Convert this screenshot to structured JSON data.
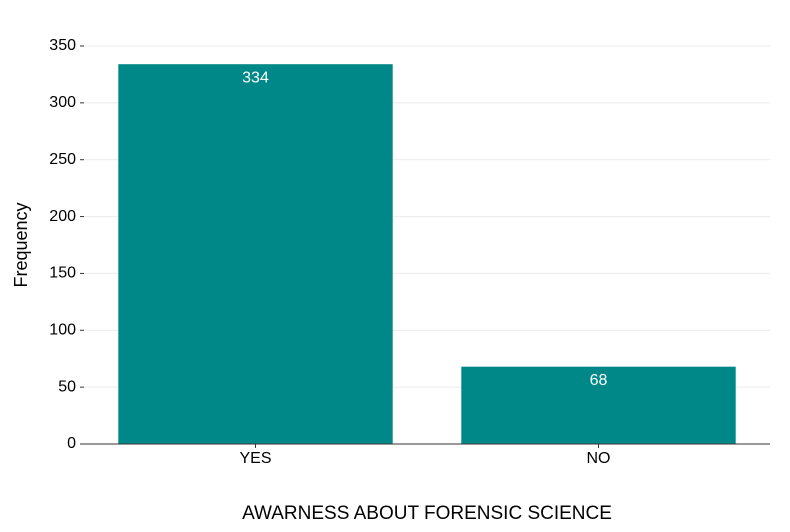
{
  "chart_data": {
    "type": "bar",
    "categories": [
      "YES",
      "NO"
    ],
    "values": [
      334,
      68
    ],
    "color": "#008888",
    "xlabel": "AWARNESS ABOUT FORENSIC SCIENCE",
    "ylabel": "Frequency",
    "ylim": [
      0,
      350
    ],
    "yticks": [
      0,
      50,
      100,
      150,
      200,
      250,
      300,
      350
    ],
    "grid": true
  }
}
